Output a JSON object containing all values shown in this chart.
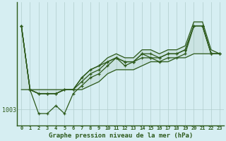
{
  "title": "Graphe pression niveau de la mer (hPa)",
  "bg_color": "#d6eef2",
  "line_color": "#2d5a1b",
  "grid_color": "#b0cccc",
  "axis_color": "#2d5a1b",
  "xlim": [
    -0.5,
    23.5
  ],
  "ylim": [
    999,
    1030
  ],
  "ytick_pos": 1003,
  "ylabel": "1003",
  "xticks": [
    0,
    1,
    2,
    3,
    4,
    5,
    6,
    7,
    8,
    9,
    10,
    11,
    12,
    13,
    14,
    15,
    16,
    17,
    18,
    19,
    20,
    21,
    22,
    23
  ],
  "envelope_top": [
    1024,
    1008,
    1007,
    1007,
    1007,
    1008,
    1008,
    1011,
    1013,
    1014,
    1016,
    1017,
    1016,
    1016,
    1018,
    1018,
    1017,
    1018,
    1018,
    1019,
    1025,
    1025,
    1018,
    1017
  ],
  "envelope_bot": [
    1008,
    1008,
    1008,
    1008,
    1008,
    1008,
    1008,
    1008,
    1009,
    1010,
    1012,
    1013,
    1013,
    1013,
    1014,
    1015,
    1015,
    1015,
    1016,
    1016,
    1017,
    1017,
    1017,
    1017
  ],
  "series_main": [
    [
      0,
      1024
    ],
    [
      1,
      1008
    ],
    [
      2,
      1007
    ],
    [
      3,
      1007
    ],
    [
      4,
      1007
    ],
    [
      5,
      1008
    ],
    [
      6,
      1008
    ],
    [
      7,
      1010
    ],
    [
      8,
      1012
    ],
    [
      9,
      1013
    ],
    [
      10,
      1015
    ],
    [
      11,
      1016
    ],
    [
      12,
      1015
    ],
    [
      13,
      1015
    ],
    [
      14,
      1017
    ],
    [
      15,
      1016
    ],
    [
      16,
      1016
    ],
    [
      17,
      1017
    ],
    [
      18,
      1017
    ],
    [
      19,
      1018
    ],
    [
      20,
      1024
    ],
    [
      21,
      1024
    ],
    [
      22,
      1017
    ],
    [
      23,
      1017
    ]
  ],
  "series_low": [
    [
      0,
      1024
    ],
    [
      1,
      1008
    ],
    [
      2,
      1002
    ],
    [
      3,
      1002
    ],
    [
      4,
      1004
    ],
    [
      5,
      1002
    ],
    [
      6,
      1007
    ],
    [
      7,
      1009
    ],
    [
      8,
      1011
    ],
    [
      9,
      1012
    ],
    [
      10,
      1014
    ],
    [
      11,
      1016
    ],
    [
      12,
      1014
    ],
    [
      13,
      1015
    ],
    [
      14,
      1016
    ],
    [
      15,
      1016
    ],
    [
      16,
      1015
    ],
    [
      17,
      1016
    ],
    [
      18,
      1016
    ],
    [
      19,
      1017
    ],
    [
      20,
      1024
    ],
    [
      21,
      1024
    ],
    [
      22,
      1017
    ],
    [
      23,
      1017
    ]
  ],
  "series_mid": [
    [
      0,
      1024
    ],
    [
      1,
      1008
    ],
    [
      2,
      1007
    ],
    [
      3,
      1007
    ],
    [
      4,
      1007
    ],
    [
      5,
      1008
    ],
    [
      6,
      1008
    ],
    [
      7,
      1011
    ],
    [
      8,
      1013
    ],
    [
      9,
      1014
    ],
    [
      10,
      1015
    ],
    [
      11,
      1016
    ],
    [
      12,
      1015
    ],
    [
      13,
      1015
    ],
    [
      14,
      1017
    ],
    [
      15,
      1017
    ],
    [
      16,
      1016
    ],
    [
      17,
      1017
    ],
    [
      18,
      1017
    ],
    [
      19,
      1018
    ],
    [
      20,
      1024
    ],
    [
      21,
      1024
    ],
    [
      22,
      1017
    ],
    [
      23,
      1017
    ]
  ]
}
